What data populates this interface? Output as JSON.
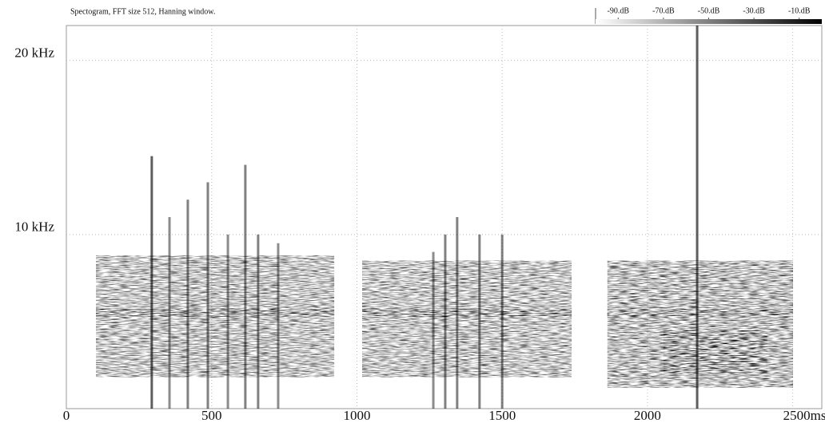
{
  "chart_data": {
    "type": "spectrogram",
    "title": "Spectogram, FFT size 512, Hanning window.",
    "xlim": [
      0,
      2600
    ],
    "xticks": [
      0,
      500,
      1000,
      1500,
      2000,
      {
        "value": 2500,
        "label": "2500ms"
      }
    ],
    "ylim": [
      0,
      22
    ],
    "yticks": [
      {
        "value": 10,
        "label": "10 kHz"
      },
      {
        "value": 20,
        "label": "20 kHz"
      }
    ],
    "grid": true,
    "colorbar": {
      "lim": [
        -100,
        0
      ],
      "ticks": [
        {
          "value": -90,
          "label": "-90.dB"
        },
        {
          "value": -70,
          "label": "-70.dB"
        },
        {
          "value": -50,
          "label": "-50.dB"
        },
        {
          "value": -30,
          "label": "-30.dB"
        },
        {
          "value": -10,
          "label": "-10.dB"
        }
      ]
    },
    "bursts": [
      {
        "start": 102,
        "end": 922,
        "fmin": 1.8,
        "fmax": 8.8,
        "level": -80
      },
      {
        "start": 1018,
        "end": 1739,
        "fmin": 1.8,
        "fmax": 8.5,
        "level": -80
      },
      {
        "start": 1862,
        "end": 2501,
        "fmin": 1.2,
        "fmax": 8.5,
        "level": -78
      },
      {
        "start": 2055,
        "end": 2413,
        "fmin": 2,
        "fmax": 4.5,
        "level": -35
      }
    ],
    "tones": [
      {
        "start": 102,
        "end": 922,
        "freq": 5.5,
        "level": -35
      },
      {
        "start": 1018,
        "end": 1739,
        "freq": 5.5,
        "level": -35
      },
      {
        "start": 1862,
        "end": 2501,
        "freq": 5.5,
        "level": -40
      }
    ],
    "clicks": [
      {
        "time": 294,
        "fmax": 14.5,
        "level": -30
      },
      {
        "time": 355,
        "fmax": 11,
        "level": -50
      },
      {
        "time": 418,
        "fmax": 12,
        "level": -45
      },
      {
        "time": 487,
        "fmax": 13,
        "level": -45
      },
      {
        "time": 556,
        "fmax": 10,
        "level": -50
      },
      {
        "time": 616,
        "fmax": 14,
        "level": -45
      },
      {
        "time": 660,
        "fmax": 10,
        "level": -45
      },
      {
        "time": 729,
        "fmax": 9.5,
        "level": -50
      },
      {
        "time": 1263,
        "fmax": 9,
        "level": -50
      },
      {
        "time": 1304,
        "fmax": 10,
        "level": -45
      },
      {
        "time": 1345,
        "fmax": 11,
        "level": -45
      },
      {
        "time": 1422,
        "fmax": 10,
        "level": -45
      },
      {
        "time": 1500,
        "fmax": 10,
        "level": -45
      },
      {
        "time": 2171,
        "fmax": 22,
        "level": -30
      }
    ]
  }
}
